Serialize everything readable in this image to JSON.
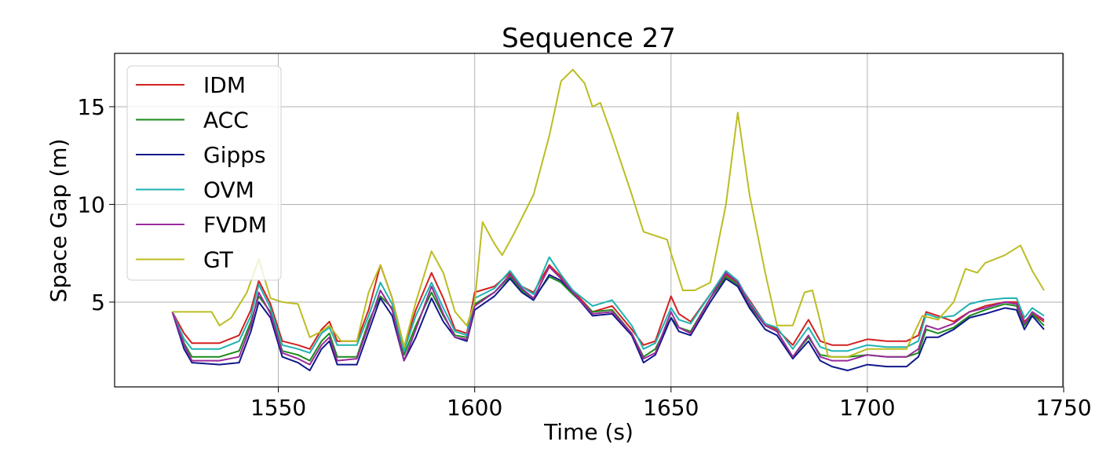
{
  "chart_data": {
    "type": "line",
    "title": "Sequence 27",
    "xlabel": "Time (s)",
    "ylabel": "Space Gap (m)",
    "xlim": [
      1508.3,
      1749.8
    ],
    "ylim": [
      0.66,
      17.73
    ],
    "xticks": [
      "1550",
      "1600",
      "1650",
      "1700",
      "1750"
    ],
    "yticks": [
      "5",
      "10",
      "15"
    ],
    "grid": true,
    "legend_position": "upper-left",
    "x": [
      1523,
      1526,
      1528,
      1535,
      1540,
      1543,
      1545,
      1548,
      1551,
      1555,
      1558,
      1561,
      1563,
      1565,
      1570,
      1573,
      1576,
      1579,
      1582,
      1585,
      1589,
      1592,
      1595,
      1598,
      1600,
      1605,
      1609,
      1612,
      1615,
      1619,
      1622,
      1625,
      1630,
      1635,
      1640,
      1643,
      1646,
      1650,
      1652,
      1655,
      1660,
      1664,
      1667,
      1670,
      1674,
      1677,
      1681,
      1685,
      1688,
      1691,
      1695,
      1700,
      1705,
      1710,
      1713,
      1715,
      1718,
      1722,
      1726,
      1730,
      1735,
      1738,
      1740,
      1742,
      1745
    ],
    "series": [
      {
        "name": "IDM",
        "color": "#d42020",
        "values": [
          4.5,
          3.4,
          2.9,
          2.9,
          3.3,
          4.6,
          6.1,
          4.9,
          3.0,
          2.8,
          2.6,
          3.6,
          4.0,
          3.0,
          3.0,
          4.6,
          6.9,
          5.2,
          2.7,
          4.6,
          6.5,
          5.2,
          3.6,
          3.4,
          5.5,
          5.8,
          6.5,
          5.8,
          5.5,
          6.9,
          6.3,
          5.6,
          4.5,
          4.8,
          3.6,
          2.8,
          3.0,
          5.3,
          4.4,
          4.0,
          5.4,
          6.4,
          6.0,
          5.1,
          3.9,
          3.6,
          2.8,
          4.1,
          3.0,
          2.8,
          2.8,
          3.1,
          3.0,
          3.0,
          3.3,
          4.5,
          4.3,
          4.0,
          4.5,
          4.8,
          5.0,
          5.0,
          4.0,
          4.4,
          4.0
        ]
      },
      {
        "name": "ACC",
        "color": "#1a8a1a",
        "values": [
          4.5,
          2.9,
          2.2,
          2.2,
          2.5,
          4.0,
          5.3,
          4.5,
          2.5,
          2.3,
          2.0,
          3.0,
          3.4,
          2.2,
          2.2,
          4.0,
          5.3,
          4.7,
          2.3,
          3.8,
          5.5,
          4.3,
          3.3,
          3.2,
          4.9,
          5.5,
          6.3,
          5.6,
          5.2,
          6.3,
          6.0,
          5.4,
          4.5,
          4.6,
          3.4,
          2.2,
          2.6,
          4.2,
          3.7,
          3.5,
          5.2,
          6.3,
          5.9,
          4.8,
          3.8,
          3.5,
          2.2,
          3.2,
          2.3,
          2.2,
          2.2,
          2.3,
          2.2,
          2.2,
          2.4,
          3.6,
          3.4,
          3.7,
          4.3,
          4.6,
          4.9,
          4.8,
          3.8,
          4.4,
          3.8
        ]
      },
      {
        "name": "Gipps",
        "color": "#10188a",
        "values": [
          4.5,
          2.6,
          1.9,
          1.8,
          1.9,
          3.5,
          5.0,
          4.2,
          2.2,
          1.9,
          1.5,
          2.6,
          3.0,
          1.8,
          1.8,
          3.5,
          5.2,
          4.3,
          2.0,
          3.2,
          5.2,
          4.0,
          3.2,
          3.0,
          4.6,
          5.3,
          6.2,
          5.5,
          5.1,
          6.4,
          6.1,
          5.5,
          4.3,
          4.4,
          3.3,
          1.9,
          2.3,
          4.2,
          3.5,
          3.3,
          5.0,
          6.2,
          5.8,
          4.7,
          3.6,
          3.3,
          2.1,
          3.0,
          2.0,
          1.7,
          1.5,
          1.8,
          1.7,
          1.7,
          2.2,
          3.2,
          3.2,
          3.6,
          4.2,
          4.4,
          4.7,
          4.6,
          3.6,
          4.3,
          3.6
        ]
      },
      {
        "name": "OVM",
        "color": "#20b2b2",
        "values": [
          4.5,
          3.1,
          2.6,
          2.6,
          3.0,
          4.3,
          5.9,
          4.7,
          2.8,
          2.6,
          2.4,
          3.4,
          3.7,
          2.8,
          2.8,
          4.3,
          6.0,
          4.9,
          2.5,
          4.3,
          6.0,
          4.7,
          3.5,
          3.3,
          5.2,
          5.7,
          6.6,
          5.8,
          5.4,
          7.3,
          6.4,
          5.6,
          4.8,
          5.1,
          3.8,
          2.6,
          2.9,
          4.7,
          4.1,
          3.9,
          5.4,
          6.6,
          6.1,
          5.0,
          3.9,
          3.7,
          2.6,
          3.7,
          2.7,
          2.5,
          2.5,
          2.8,
          2.7,
          2.7,
          3.0,
          4.4,
          4.2,
          4.3,
          4.9,
          5.1,
          5.2,
          5.2,
          4.2,
          4.7,
          4.3
        ]
      },
      {
        "name": "FVDM",
        "color": "#9a2a9a",
        "values": [
          4.5,
          2.8,
          2.0,
          2.0,
          2.2,
          3.8,
          5.5,
          4.4,
          2.4,
          2.1,
          1.8,
          2.8,
          3.2,
          2.0,
          2.1,
          3.8,
          5.6,
          4.6,
          2.0,
          3.6,
          5.8,
          4.4,
          3.2,
          3.1,
          4.8,
          5.5,
          6.4,
          5.7,
          5.2,
          6.8,
          6.2,
          5.5,
          4.4,
          4.5,
          3.4,
          2.1,
          2.4,
          4.5,
          3.7,
          3.4,
          5.2,
          6.5,
          6.0,
          4.9,
          3.8,
          3.5,
          2.2,
          3.3,
          2.2,
          2.0,
          2.0,
          2.3,
          2.2,
          2.2,
          2.6,
          3.8,
          3.6,
          3.9,
          4.5,
          4.7,
          5.0,
          4.9,
          3.9,
          4.5,
          4.1
        ]
      },
      {
        "name": "GT",
        "color": "#bcbd22",
        "x": [
          1523,
          1528,
          1533,
          1535,
          1538,
          1542,
          1545,
          1548,
          1551,
          1555,
          1558,
          1561,
          1563,
          1566,
          1570,
          1573,
          1576,
          1579,
          1582,
          1585,
          1589,
          1592,
          1595,
          1598,
          1600,
          1602,
          1605,
          1607,
          1610,
          1615,
          1619,
          1622,
          1625,
          1628,
          1630,
          1632,
          1635,
          1640,
          1643,
          1646,
          1649,
          1650,
          1653,
          1656,
          1660,
          1664,
          1667,
          1670,
          1674,
          1677,
          1681,
          1684,
          1686,
          1688,
          1690,
          1695,
          1700,
          1705,
          1710,
          1714,
          1718,
          1722,
          1725,
          1728,
          1730,
          1735,
          1739,
          1742,
          1745
        ],
        "values": [
          4.5,
          4.5,
          4.5,
          3.8,
          4.2,
          5.5,
          7.2,
          5.2,
          5.0,
          4.9,
          3.2,
          3.5,
          3.8,
          3.0,
          3.0,
          5.5,
          6.9,
          5.2,
          2.7,
          5.0,
          7.6,
          6.5,
          4.5,
          3.8,
          5.0,
          9.1,
          8.0,
          7.4,
          8.5,
          10.5,
          13.5,
          16.3,
          16.9,
          16.2,
          15.0,
          15.2,
          13.5,
          10.5,
          8.6,
          8.4,
          8.2,
          7.5,
          5.6,
          5.6,
          6.0,
          10.0,
          14.7,
          10.5,
          6.5,
          3.8,
          3.8,
          5.5,
          5.6,
          4.0,
          2.2,
          2.2,
          2.6,
          2.6,
          2.6,
          4.3,
          4.1,
          5.0,
          6.7,
          6.5,
          7.0,
          7.4,
          7.9,
          6.6,
          5.6
        ]
      }
    ]
  }
}
